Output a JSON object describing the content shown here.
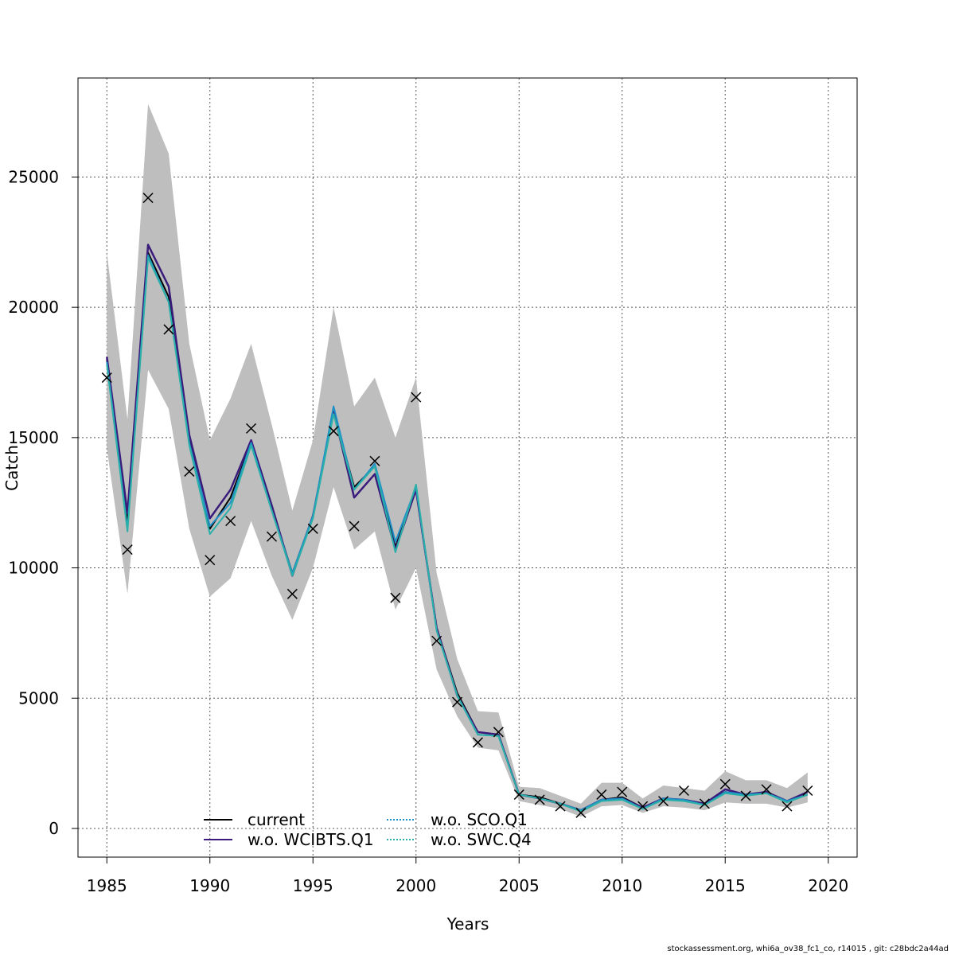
{
  "chart_data": {
    "type": "line",
    "xlabel": "Years",
    "ylabel": "Catch",
    "xlim": [
      1983.6,
      2021.4
    ],
    "ylim": [
      -1100,
      28800
    ],
    "x_ticks": [
      1985,
      1990,
      1995,
      2000,
      2005,
      2010,
      2015,
      2020
    ],
    "y_ticks": [
      0,
      5000,
      10000,
      15000,
      20000,
      25000
    ],
    "grid": true,
    "legend_position": "bottom-center",
    "years": [
      1985,
      1986,
      1987,
      1988,
      1989,
      1990,
      1991,
      1992,
      1993,
      1994,
      1995,
      1996,
      1997,
      1998,
      1999,
      2000,
      2001,
      2002,
      2003,
      2004,
      2005,
      2006,
      2007,
      2008,
      2009,
      2010,
      2011,
      2012,
      2013,
      2014,
      2015,
      2016,
      2017,
      2018,
      2019
    ],
    "confidence_band": {
      "upper": [
        22100,
        15700,
        27800,
        25900,
        18600,
        14900,
        16500,
        18600,
        15500,
        12200,
        14900,
        20000,
        16200,
        17300,
        15000,
        17300,
        9800,
        6500,
        4500,
        4450,
        1600,
        1550,
        1250,
        950,
        1750,
        1750,
        1150,
        1650,
        1550,
        1450,
        2200,
        1850,
        1850,
        1550,
        2150
      ],
      "lower": [
        14600,
        9000,
        17600,
        16100,
        11500,
        8900,
        9600,
        11800,
        9700,
        8000,
        10000,
        13100,
        10700,
        11400,
        8400,
        10000,
        6100,
        4300,
        3100,
        3000,
        1050,
        900,
        750,
        450,
        850,
        900,
        600,
        850,
        800,
        700,
        1000,
        950,
        950,
        800,
        1000
      ],
      "color": "#bebebe"
    },
    "series": [
      {
        "name": "current",
        "color": "#000000",
        "style": "solid",
        "values": [
          18000,
          11800,
          22100,
          20400,
          14900,
          11500,
          12700,
          14800,
          12300,
          9800,
          12000,
          16000,
          13100,
          13900,
          10800,
          13000,
          7700,
          5200,
          3700,
          3600,
          1300,
          1200,
          950,
          700,
          1100,
          1200,
          800,
          1150,
          1100,
          950,
          1400,
          1300,
          1400,
          1050,
          1300
        ]
      },
      {
        "name": "w.o. WCIBTS.Q1",
        "color": "#3a1a7a",
        "style": "solid",
        "values": [
          18100,
          12100,
          22400,
          20800,
          15100,
          11900,
          13000,
          14900,
          12400,
          9700,
          12000,
          16000,
          12700,
          13600,
          10700,
          13000,
          7700,
          5100,
          3700,
          3600,
          1300,
          1150,
          950,
          700,
          1100,
          1150,
          800,
          1150,
          1100,
          950,
          1500,
          1300,
          1400,
          1050,
          1400
        ]
      },
      {
        "name": "w.o. SCO.Q1",
        "color": "#1e90c8",
        "style": "dotted",
        "values": [
          17900,
          11500,
          22000,
          20200,
          14800,
          11600,
          12500,
          14800,
          12200,
          9800,
          12000,
          16200,
          13000,
          14000,
          11000,
          13100,
          7600,
          5100,
          3600,
          3550,
          1300,
          1150,
          950,
          700,
          1100,
          1150,
          750,
          1150,
          1100,
          900,
          1400,
          1300,
          1350,
          1050,
          1300
        ]
      },
      {
        "name": "w.o. SWC.Q4",
        "color": "#2ab0a8",
        "style": "dotted",
        "values": [
          17800,
          11400,
          21900,
          20200,
          14700,
          11300,
          12300,
          14700,
          12200,
          9700,
          11900,
          15900,
          13000,
          13900,
          10600,
          13200,
          7600,
          5100,
          3600,
          3550,
          1300,
          1150,
          950,
          650,
          1050,
          1100,
          750,
          1100,
          1050,
          900,
          1350,
          1250,
          1350,
          1000,
          1300
        ]
      }
    ],
    "observations": {
      "marker": "x",
      "color": "#000000",
      "values": [
        17300,
        10700,
        24200,
        19150,
        13700,
        10300,
        11800,
        15350,
        11200,
        9000,
        11500,
        15250,
        11600,
        14100,
        8850,
        16550,
        7200,
        4850,
        3300,
        3700,
        1300,
        1100,
        850,
        600,
        1300,
        1400,
        850,
        1050,
        1450,
        950,
        1700,
        1250,
        1500,
        850,
        1450
      ]
    },
    "legend": [
      {
        "label": "current",
        "series": 0
      },
      {
        "label": "w.o. WCIBTS.Q1",
        "series": 1
      },
      {
        "label": "w.o. SCO.Q1",
        "series": 2
      },
      {
        "label": "w.o. SWC.Q4",
        "series": 3
      }
    ]
  },
  "footer": "stockassessment.org, whi6a_ov38_fc1_co, r14015 , git: c28bdc2a44ad"
}
